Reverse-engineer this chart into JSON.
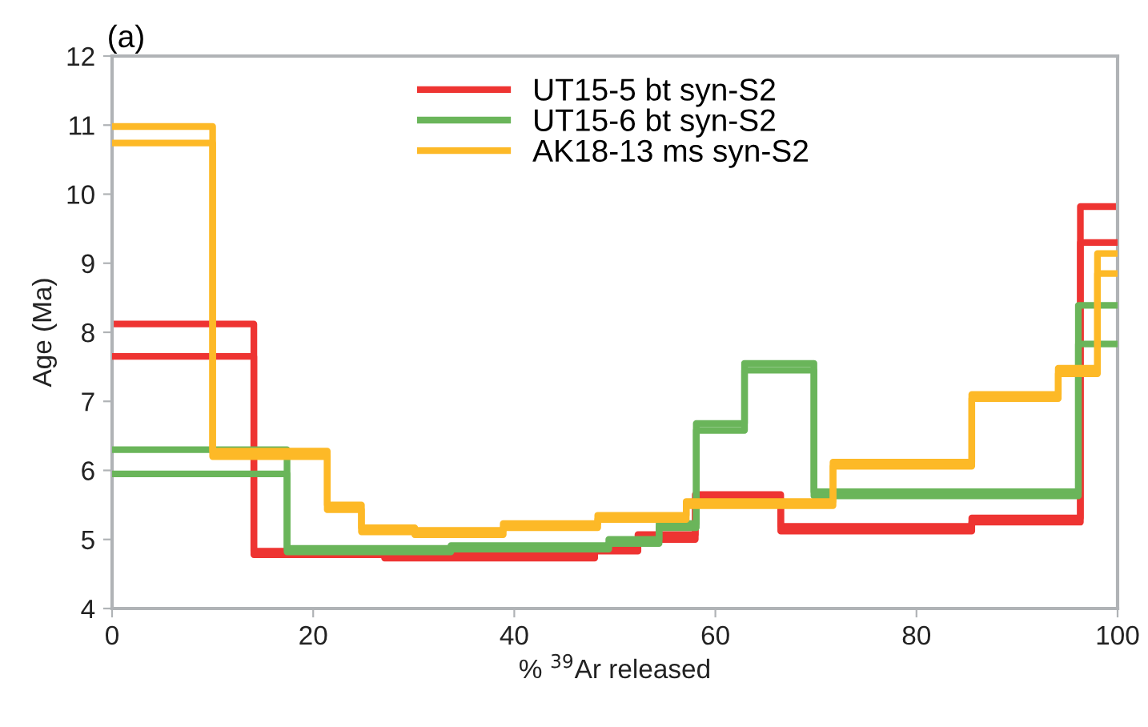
{
  "chart_data": {
    "type": "step",
    "title": "(a)",
    "xlabel": "% $^{39}$Ar released",
    "ylabel": "Age (Ma)",
    "xlim": [
      0,
      100
    ],
    "xticks": [
      0,
      20,
      40,
      60,
      80,
      100
    ],
    "ylim": [
      4,
      12
    ],
    "yticks": [
      4,
      5,
      6,
      7,
      8,
      9,
      10,
      11,
      12
    ],
    "grid": false,
    "legend": "top",
    "marker": "none",
    "line_style": "solid",
    "series": [
      {
        "name": "UT15-5 bt syn-S2",
        "color": "#ee3432",
        "x": [
          0,
          14.1,
          27.1,
          48.0,
          52.3,
          58.0,
          66.5,
          85.5,
          96.3,
          100
        ],
        "values": [
          8.12,
          4.83,
          4.79,
          4.89,
          5.07,
          5.65,
          5.19,
          5.31,
          9.82,
          9.82
        ]
      },
      {
        "name": null,
        "color": "#ee3432",
        "x": [
          0,
          14.1,
          27.1,
          48.0,
          52.3,
          58.0,
          66.5,
          85.5,
          96.3,
          100
        ],
        "values": [
          7.65,
          4.78,
          4.73,
          4.83,
          5.0,
          5.58,
          5.12,
          5.25,
          9.3,
          9.3
        ]
      },
      {
        "name": "UT15-6 bt syn-S2",
        "color": "#6ab55a",
        "x": [
          0,
          17.4,
          33.7,
          49.4,
          54.4,
          58.1,
          62.9,
          69.8,
          96.1,
          100
        ],
        "values": [
          6.3,
          4.87,
          4.91,
          5.0,
          5.23,
          6.68,
          7.55,
          5.69,
          8.39,
          8.39
        ]
      },
      {
        "name": null,
        "color": "#6ab55a",
        "x": [
          0,
          17.4,
          33.7,
          49.4,
          54.4,
          58.1,
          62.9,
          69.8,
          96.1,
          100
        ],
        "values": [
          5.95,
          4.82,
          4.86,
          4.94,
          5.17,
          6.58,
          7.45,
          5.63,
          7.83,
          7.83
        ]
      },
      {
        "name": "AK18-13 ms syn-S2",
        "color": "#fdb927",
        "x": [
          0,
          10.0,
          21.4,
          24.8,
          30.1,
          38.9,
          48.3,
          57.1,
          71.7,
          85.5,
          94.1,
          98.0,
          100
        ],
        "values": [
          10.98,
          6.28,
          5.5,
          5.17,
          5.13,
          5.23,
          5.35,
          5.55,
          6.12,
          7.1,
          7.48,
          9.14,
          9.14
        ]
      },
      {
        "name": null,
        "color": "#fdb927",
        "x": [
          0,
          10.0,
          21.4,
          24.8,
          30.1,
          38.9,
          48.3,
          57.1,
          71.7,
          85.5,
          94.1,
          98.0,
          100
        ],
        "values": [
          10.74,
          6.2,
          5.43,
          5.11,
          5.07,
          5.17,
          5.29,
          5.49,
          6.06,
          7.04,
          7.4,
          8.85,
          8.85
        ]
      }
    ]
  }
}
